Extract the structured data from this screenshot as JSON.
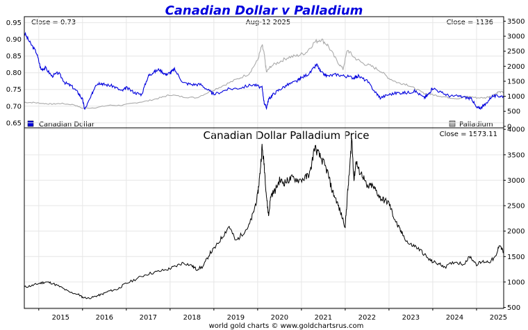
{
  "chart_data": [
    {
      "id": "top-panel",
      "type": "line",
      "title": "Canadian Dollar v Palladium",
      "date_label": "Aug-12 2025",
      "left_axis": {
        "ticks": [
          0.65,
          0.7,
          0.75,
          0.8,
          0.85,
          0.9,
          0.95
        ],
        "ylim": [
          0.635,
          0.968
        ]
      },
      "right_axis": {
        "ticks": [
          0,
          500,
          1000,
          1500,
          2000,
          2500,
          3000,
          3500
        ],
        "ylim": [
          -50,
          3650
        ]
      },
      "x_ticks": [
        "2015",
        "2016",
        "2017",
        "2018",
        "2019",
        "2020",
        "2021",
        "2022",
        "2023",
        "2024",
        "2025"
      ],
      "x_range": [
        2014.67,
        2025.62
      ],
      "series": [
        {
          "name": "Canadian Dollar",
          "axis": "left",
          "color": "#0000dd",
          "close_label": "Close = 0.73",
          "x": [
            2014.67,
            2014.8,
            2014.95,
            2015.05,
            2015.15,
            2015.3,
            2015.45,
            2015.6,
            2015.75,
            2015.9,
            2016.0,
            2016.05,
            2016.2,
            2016.3,
            2016.4,
            2016.5,
            2016.7,
            2016.9,
            2017.0,
            2017.2,
            2017.35,
            2017.5,
            2017.6,
            2017.75,
            2017.9,
            2018.0,
            2018.1,
            2018.3,
            2018.5,
            2018.7,
            2018.9,
            2019.0,
            2019.3,
            2019.6,
            2019.9,
            2020.1,
            2020.15,
            2020.2,
            2020.25,
            2020.35,
            2020.5,
            2020.7,
            2020.9,
            2021.0,
            2021.2,
            2021.35,
            2021.45,
            2021.6,
            2021.8,
            2022.0,
            2022.2,
            2022.3,
            2022.5,
            2022.7,
            2022.8,
            2023.0,
            2023.2,
            2023.4,
            2023.6,
            2023.8,
            2023.9,
            2024.0,
            2024.2,
            2024.4,
            2024.6,
            2024.8,
            2024.9,
            2025.0,
            2025.1,
            2025.2,
            2025.35,
            2025.5,
            2025.62
          ],
          "values": [
            0.92,
            0.89,
            0.86,
            0.81,
            0.815,
            0.79,
            0.8,
            0.77,
            0.76,
            0.74,
            0.72,
            0.69,
            0.73,
            0.765,
            0.77,
            0.765,
            0.76,
            0.745,
            0.755,
            0.74,
            0.735,
            0.79,
            0.8,
            0.81,
            0.795,
            0.8,
            0.81,
            0.77,
            0.765,
            0.765,
            0.745,
            0.735,
            0.75,
            0.755,
            0.765,
            0.755,
            0.71,
            0.695,
            0.72,
            0.735,
            0.75,
            0.765,
            0.775,
            0.785,
            0.8,
            0.825,
            0.8,
            0.79,
            0.795,
            0.79,
            0.785,
            0.79,
            0.775,
            0.74,
            0.725,
            0.735,
            0.74,
            0.74,
            0.745,
            0.725,
            0.735,
            0.755,
            0.74,
            0.73,
            0.73,
            0.725,
            0.72,
            0.695,
            0.695,
            0.705,
            0.73,
            0.73,
            0.73
          ]
        },
        {
          "name": "Palladium",
          "axis": "right",
          "color": "#aaaaaa",
          "close_label": "Close = 1136",
          "x": [
            2014.67,
            2014.9,
            2015.1,
            2015.3,
            2015.5,
            2015.8,
            2016.0,
            2016.3,
            2016.6,
            2016.9,
            2017.2,
            2017.5,
            2017.8,
            2018.0,
            2018.3,
            2018.6,
            2018.9,
            2019.2,
            2019.5,
            2019.8,
            2020.0,
            2020.1,
            2020.15,
            2020.2,
            2020.3,
            2020.5,
            2020.7,
            2020.9,
            2021.1,
            2021.3,
            2021.45,
            2021.6,
            2021.8,
            2021.95,
            2022.05,
            2022.2,
            2022.4,
            2022.6,
            2022.8,
            2023.0,
            2023.2,
            2023.4,
            2023.6,
            2023.8,
            2024.0,
            2024.2,
            2024.4,
            2024.6,
            2024.8,
            2025.0,
            2025.2,
            2025.4,
            2025.5,
            2025.62
          ],
          "values": [
            800,
            790,
            760,
            740,
            760,
            720,
            600,
            620,
            700,
            700,
            780,
            850,
            960,
            1050,
            980,
            950,
            1150,
            1350,
            1550,
            1750,
            2200,
            2700,
            2400,
            1800,
            2000,
            2150,
            2300,
            2350,
            2450,
            2800,
            2900,
            2700,
            2200,
            1900,
            2550,
            2300,
            2100,
            2000,
            1850,
            1600,
            1450,
            1400,
            1250,
            1100,
            1050,
            1000,
            950,
            920,
            1000,
            950,
            950,
            1050,
            1150,
            1136
          ]
        }
      ]
    },
    {
      "id": "bottom-panel",
      "type": "line",
      "title": "Canadian Dollar Palladium Price",
      "close_label": "Close = 1573.11",
      "right_axis": {
        "ticks": [
          500,
          1000,
          1500,
          2000,
          2500,
          3000,
          3500,
          4000
        ],
        "ylim": [
          480,
          4030
        ]
      },
      "x_ticks": [
        "2015",
        "2016",
        "2017",
        "2018",
        "2019",
        "2020",
        "2021",
        "2022",
        "2023",
        "2024",
        "2025"
      ],
      "x_range": [
        2014.67,
        2025.62
      ],
      "series": [
        {
          "name": "Canadian Dollar Palladium Price",
          "color": "#000000",
          "x": [
            2014.67,
            2014.85,
            2015.0,
            2015.15,
            2015.3,
            2015.5,
            2015.7,
            2015.9,
            2016.0,
            2016.15,
            2016.3,
            2016.45,
            2016.6,
            2016.8,
            2016.95,
            2017.2,
            2017.45,
            2017.7,
            2017.95,
            2018.1,
            2018.3,
            2018.5,
            2018.6,
            2018.75,
            2018.9,
            2019.05,
            2019.2,
            2019.35,
            2019.5,
            2019.65,
            2019.8,
            2019.9,
            2020.0,
            2020.05,
            2020.1,
            2020.15,
            2020.2,
            2020.25,
            2020.3,
            2020.4,
            2020.5,
            2020.6,
            2020.7,
            2020.8,
            2020.95,
            2021.1,
            2021.2,
            2021.3,
            2021.4,
            2021.5,
            2021.6,
            2021.7,
            2021.8,
            2021.9,
            2022.0,
            2022.05,
            2022.1,
            2022.15,
            2022.2,
            2022.25,
            2022.3,
            2022.4,
            2022.5,
            2022.6,
            2022.7,
            2022.8,
            2022.9,
            2023.0,
            2023.1,
            2023.2,
            2023.3,
            2023.45,
            2023.6,
            2023.75,
            2023.9,
            2024.0,
            2024.15,
            2024.3,
            2024.5,
            2024.7,
            2024.85,
            2025.0,
            2025.15,
            2025.3,
            2025.45,
            2025.52,
            2025.62
          ],
          "values": [
            900,
            930,
            970,
            1000,
            980,
            900,
            800,
            760,
            700,
            680,
            720,
            760,
            820,
            860,
            950,
            1050,
            1150,
            1200,
            1250,
            1300,
            1380,
            1320,
            1250,
            1300,
            1550,
            1700,
            1900,
            2100,
            1800,
            1950,
            2100,
            2350,
            2700,
            3100,
            3650,
            3300,
            2700,
            2300,
            2700,
            2800,
            3000,
            2950,
            3000,
            3050,
            3000,
            3050,
            3150,
            3650,
            3500,
            3350,
            3150,
            2800,
            2600,
            2350,
            2100,
            2700,
            3200,
            3850,
            3000,
            3400,
            3200,
            3100,
            2850,
            2900,
            2800,
            2650,
            2600,
            2550,
            2300,
            2100,
            1950,
            1750,
            1700,
            1600,
            1450,
            1400,
            1350,
            1300,
            1400,
            1350,
            1500,
            1350,
            1400,
            1400,
            1500,
            1750,
            1573.11
          ]
        }
      ]
    }
  ],
  "footer": "world gold charts © www.goldchartsrus.com"
}
